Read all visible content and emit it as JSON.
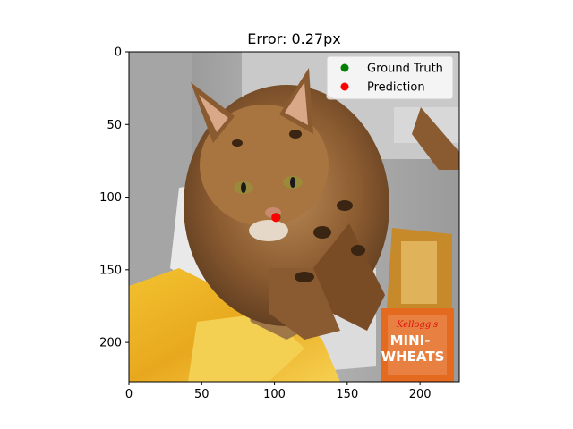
{
  "chart_data": {
    "type": "scatter",
    "title": "Error: 0.27px",
    "xlabel": "",
    "ylabel": "",
    "xlim": [
      0,
      227
    ],
    "ylim": [
      227,
      0
    ],
    "y_inverted": true,
    "xticks": [
      0,
      50,
      100,
      150,
      200
    ],
    "yticks": [
      0,
      50,
      100,
      150,
      200
    ],
    "background": "photograph of a tabby cat in a cupboard with a yellow bag and a Kellogg's Mini-Wheats box",
    "legend_position": "top-right",
    "series": [
      {
        "name": "Ground Truth",
        "color": "#008000",
        "points": [
          [
            101.2,
            113.9
          ]
        ]
      },
      {
        "name": "Prediction",
        "color": "#ff0000",
        "points": [
          [
            101.0,
            114.0
          ]
        ]
      }
    ]
  },
  "photo": {
    "box_brand": "Kellogg's",
    "box_line1": "MINI-",
    "box_line2": "WHEATS"
  }
}
